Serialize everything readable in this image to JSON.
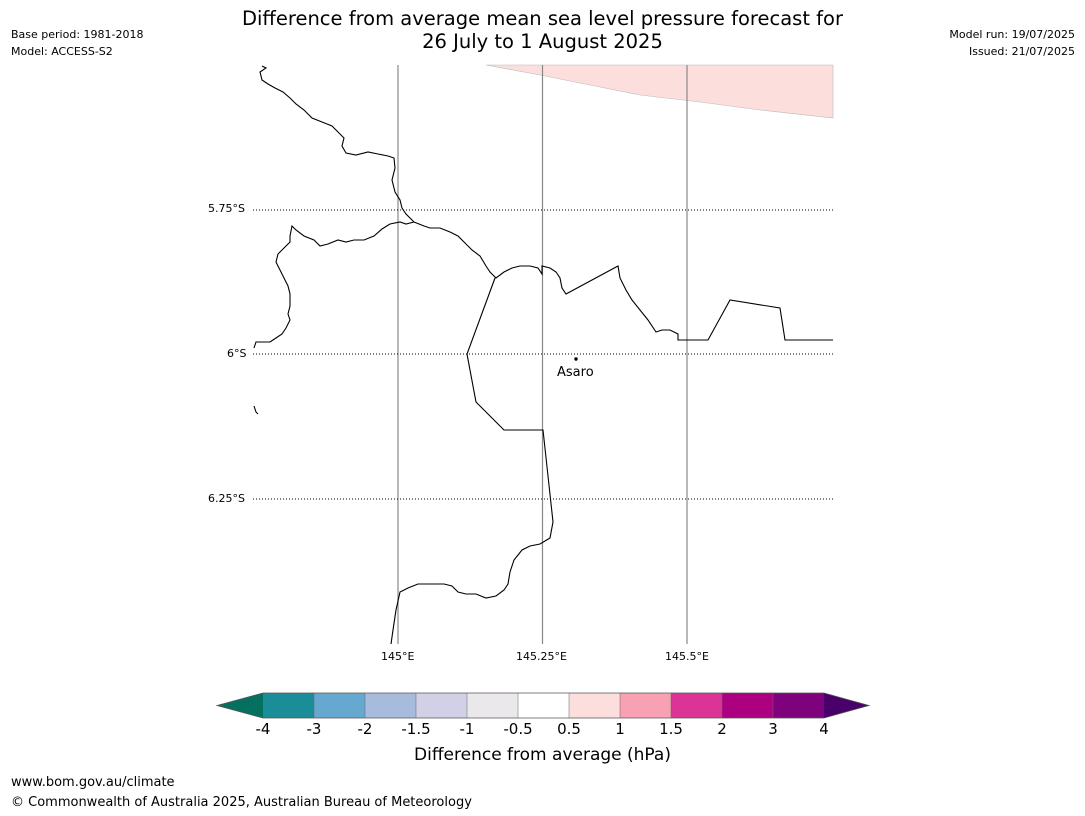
{
  "header": {
    "base_period": "Base period: 1981-2018",
    "model": "Model: ACCESS-S2",
    "model_run": "Model run: 19/07/2025",
    "issued": "Issued: 21/07/2025",
    "title_line1": "Difference from average mean sea level pressure forecast for",
    "title_line2": "26 July to 1 August 2025"
  },
  "map": {
    "lat_labels": [
      "5.75°S",
      "6°S",
      "6.25°S"
    ],
    "lon_labels": [
      "145°E",
      "145.25°E",
      "145.5°E"
    ],
    "place_name": "Asaro",
    "region_color": "#fcdedd",
    "region_value": "0.5 to 1"
  },
  "colorbar": {
    "title": "Difference from average (hPa)",
    "tick_labels": [
      "-4",
      "-3",
      "-2",
      "-1.5",
      "-1",
      "-0.5",
      "0.5",
      "1",
      "1.5",
      "2",
      "3",
      "4"
    ],
    "colors": {
      "lt-4": "#05705f",
      "-4 to -3": "#1b8d98",
      "-3 to -2": "#66a8d0",
      "-2 to -1.5": "#a7bcdd",
      "-1.5 to -1": "#d1d0e6",
      "-1 to -0.5": "#ebe8ec",
      "-0.5 to 0.5": "#ffffff",
      "0.5 to 1": "#fcdedd",
      "1 to 1.5": "#f8a0b4",
      "1.5 to 2": "#dc3397",
      "2 to 3": "#ad0080",
      "3 to 4": "#7e027b",
      "gt4": "#4a006a"
    }
  },
  "footer": {
    "url": "www.bom.gov.au/climate",
    "copyright": "© Commonwealth of Australia 2025, Australian Bureau of Meteorology"
  }
}
